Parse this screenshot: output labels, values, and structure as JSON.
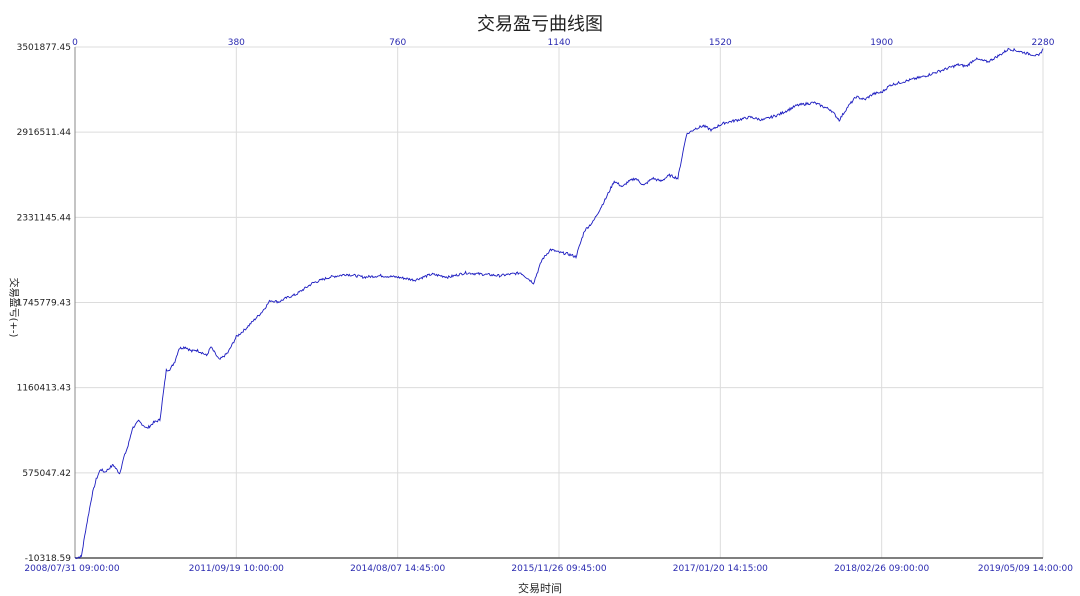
{
  "chart_data": {
    "type": "line",
    "title": "交易盈亏曲线图",
    "xlabel": "交易时间",
    "ylabel": "交易盈亏(+-)",
    "ylim": [
      -10318.59,
      3501877.45
    ],
    "yticks": [
      "3501877.45",
      "2916511.44",
      "2331145.44",
      "1745779.43",
      "1160413.43",
      "575047.42",
      "-10318.59"
    ],
    "ytick_values": [
      3501877.45,
      2916511.44,
      2331145.44,
      1745779.43,
      1160413.43,
      575047.42,
      -10318.59
    ],
    "xlim": [
      0,
      2280
    ],
    "top_ticks": [
      "0",
      "380",
      "760",
      "1140",
      "1520",
      "1900",
      "2280"
    ],
    "top_tick_values": [
      0,
      380,
      760,
      1140,
      1520,
      1900,
      2280
    ],
    "bottom_ticks": [
      "2008/07/31 09:00:00",
      "2011/09/19 10:00:00",
      "2014/08/07 14:45:00",
      "2015/11/26 09:45:00",
      "2017/01/20 14:15:00",
      "2018/02/26 09:00:00",
      "2019/05/09 14:00:00"
    ],
    "grid": true,
    "line_color": "#1c1cc0",
    "series": [
      {
        "x": [
          0,
          15,
          25,
          40,
          50,
          60,
          70,
          90,
          105,
          115,
          125,
          135,
          150,
          170,
          185,
          200,
          215,
          225,
          235,
          245,
          260,
          275,
          285,
          300,
          310,
          320,
          340,
          360,
          380,
          400,
          420,
          440,
          460,
          480,
          500,
          520,
          560,
          600,
          640,
          680,
          720,
          760,
          800,
          840,
          880,
          920,
          960,
          1000,
          1050,
          1080,
          1100,
          1120,
          1140,
          1160,
          1180,
          1200,
          1220,
          1250,
          1270,
          1290,
          1300,
          1320,
          1340,
          1360,
          1380,
          1400,
          1420,
          1440,
          1460,
          1480,
          1500,
          1515,
          1530,
          1560,
          1590,
          1620,
          1660,
          1700,
          1740,
          1780,
          1800,
          1820,
          1840,
          1860,
          1880,
          1900,
          1920,
          1960,
          2000,
          2040,
          2080,
          2100,
          2120,
          2150,
          2180,
          2200,
          2240,
          2270,
          2280
        ],
        "y": [
          -10318.59,
          0,
          180000,
          420000,
          530000,
          600000,
          580000,
          630000,
          570000,
          680000,
          760000,
          880000,
          930000,
          880000,
          920000,
          940000,
          1280000,
          1290000,
          1340000,
          1430000,
          1440000,
          1410000,
          1420000,
          1400000,
          1380000,
          1440000,
          1350000,
          1400000,
          1510000,
          1560000,
          1620000,
          1680000,
          1760000,
          1750000,
          1780000,
          1800000,
          1880000,
          1920000,
          1940000,
          1920000,
          1930000,
          1920000,
          1900000,
          1940000,
          1920000,
          1950000,
          1940000,
          1930000,
          1950000,
          1880000,
          2040000,
          2110000,
          2090000,
          2080000,
          2060000,
          2240000,
          2300000,
          2460000,
          2580000,
          2540000,
          2570000,
          2600000,
          2550000,
          2600000,
          2580000,
          2620000,
          2600000,
          2900000,
          2940000,
          2960000,
          2930000,
          2960000,
          2980000,
          3000000,
          3020000,
          3000000,
          3040000,
          3100000,
          3120000,
          3070000,
          3000000,
          3090000,
          3160000,
          3140000,
          3180000,
          3190000,
          3240000,
          3270000,
          3300000,
          3340000,
          3380000,
          3370000,
          3420000,
          3400000,
          3450000,
          3490000,
          3460000,
          3440000,
          3490000
        ]
      }
    ]
  }
}
